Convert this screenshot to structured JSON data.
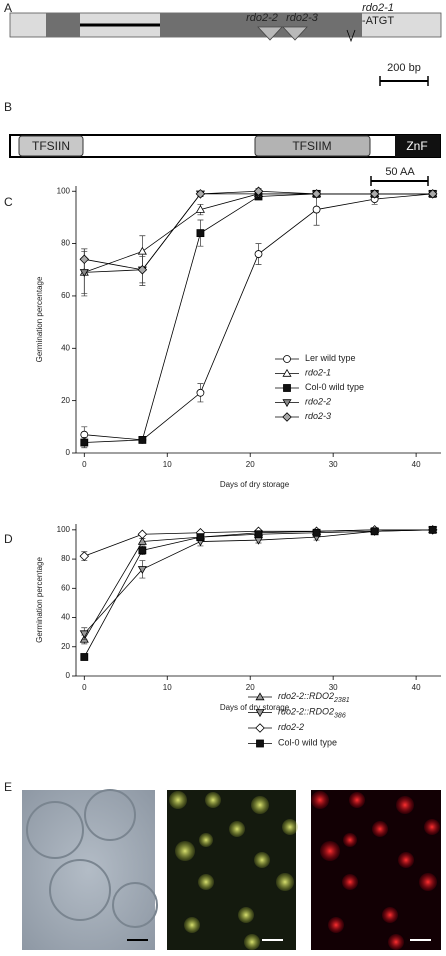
{
  "panels": {
    "a": {
      "letter": "A",
      "mut1": "rdo2-2",
      "mut2": "rdo2-3",
      "mut3": "rdo2-1",
      "mut3_note": "-ATGT",
      "scale": "200 bp"
    },
    "b": {
      "letter": "B",
      "domain1": "TFSIIN",
      "domain2": "TFSIIM",
      "domain3": "ZnF",
      "scale": "50 AA"
    },
    "c": {
      "letter": "C"
    },
    "d": {
      "letter": "D"
    },
    "e": {
      "letter": "E"
    }
  },
  "chart_data": [
    {
      "type": "line",
      "x_label": "Days of dry storage",
      "y_label": "Germination percentage",
      "x": [
        0,
        7,
        14,
        21,
        28,
        35,
        42
      ],
      "xlim": [
        -1,
        43
      ],
      "ylim": [
        0,
        102
      ],
      "xticks": [
        0,
        10,
        20,
        30,
        40
      ],
      "yticks": [
        0,
        20,
        40,
        60,
        80,
        100
      ],
      "series": [
        {
          "name": "Ler wild type",
          "marker": "circle",
          "color": "#ffffff",
          "italic": false,
          "values": [
            7,
            5,
            23,
            76,
            93,
            97,
            99
          ],
          "errors": [
            3,
            1,
            3.5,
            4,
            6,
            2,
            1
          ]
        },
        {
          "name": "rdo2-1",
          "marker": "triangle-up",
          "color": "#ffffff",
          "italic": true,
          "values": [
            69,
            77,
            93,
            99,
            99,
            99,
            99
          ],
          "errors": [
            8,
            6,
            2,
            1,
            1,
            1,
            1
          ]
        },
        {
          "name": "Col-0 wild type",
          "marker": "square",
          "color": "#111111",
          "italic": false,
          "values": [
            4,
            5,
            84,
            98,
            99,
            99,
            99
          ],
          "errors": [
            2,
            1,
            5,
            1,
            1,
            1,
            1
          ]
        },
        {
          "name": "rdo2-2",
          "marker": "triangle-down",
          "color": "#888888",
          "italic": true,
          "values": [
            69,
            70,
            99,
            99,
            99,
            99,
            99
          ],
          "errors": [
            9,
            5,
            1,
            1,
            1,
            1,
            1
          ]
        },
        {
          "name": "rdo2-3",
          "marker": "diamond",
          "color": "#aaaaaa",
          "italic": true,
          "values": [
            74,
            70,
            99,
            100,
            99,
            99,
            99
          ],
          "errors": [
            4,
            6,
            1,
            1,
            1,
            1,
            1
          ]
        }
      ]
    },
    {
      "type": "line",
      "x_label": "Days of dry storage",
      "y_label": "Germination percentage",
      "x": [
        0,
        7,
        14,
        21,
        28,
        35,
        42
      ],
      "xlim": [
        -1,
        43
      ],
      "ylim": [
        0,
        104
      ],
      "xticks": [
        0,
        10,
        20,
        30,
        40
      ],
      "yticks": [
        0,
        20,
        40,
        60,
        80,
        100
      ],
      "series": [
        {
          "name": "rdo2-2::RDO2",
          "subscript": "2381",
          "marker": "triangle-up",
          "color": "#999999",
          "italic": true,
          "values": [
            25,
            92,
            95,
            98,
            99,
            100,
            100
          ],
          "errors": [
            3,
            2,
            2,
            1,
            1,
            1,
            1
          ]
        },
        {
          "name": "rdo2-2::RDO2",
          "subscript": "386",
          "marker": "triangle-down",
          "color": "#999999",
          "italic": true,
          "values": [
            29,
            73,
            92,
            93,
            95,
            99,
            100
          ],
          "errors": [
            4,
            6,
            3,
            2,
            2,
            1,
            1
          ]
        },
        {
          "name": "rdo2-2",
          "marker": "diamond",
          "color": "#ffffff",
          "italic": true,
          "values": [
            82,
            97,
            98,
            99,
            99,
            100,
            100
          ],
          "errors": [
            3,
            1,
            1,
            1,
            1,
            1,
            1
          ]
        },
        {
          "name": "Col-0 wild type",
          "marker": "square",
          "color": "#111111",
          "italic": false,
          "values": [
            13,
            86,
            95,
            97,
            98,
            99,
            100
          ],
          "errors": [
            2,
            3,
            2,
            2,
            1,
            1,
            1
          ]
        }
      ]
    }
  ]
}
